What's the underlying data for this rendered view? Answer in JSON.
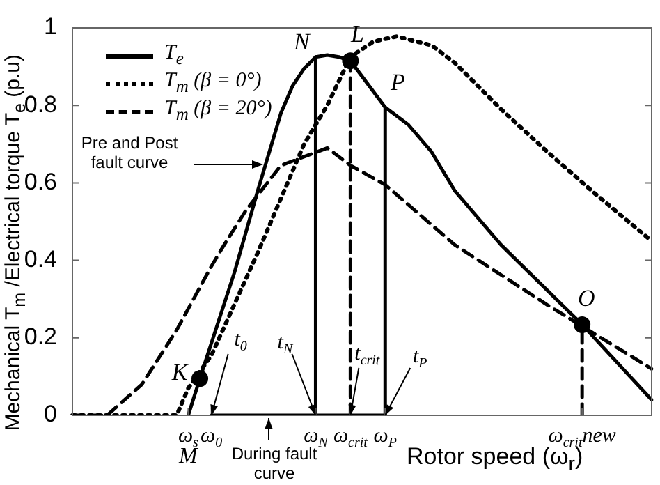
{
  "chart_data": {
    "type": "line",
    "xlabel": "Rotor speed (ω$_{r}$)",
    "ylabel": "Mechanical T$_{m}$ /Electrical torque T$_{e}$ (p.u)",
    "categories": [
      null,
      null,
      null,
      null,
      null,
      null,
      null,
      null,
      null,
      null,
      "ω$_{s}$",
      null,
      "ω$_{0}$",
      null,
      null,
      null,
      null,
      null,
      null,
      null,
      null,
      "ω$_{N}$",
      null,
      null,
      "ω$_{crit}$",
      null,
      null,
      "ω$_{P}$",
      null,
      null,
      null,
      null,
      null,
      null,
      null,
      null,
      null,
      null,
      null,
      null,
      null,
      null,
      null,
      null,
      "ω$_{crit}$new",
      null,
      null,
      null,
      null,
      null,
      null
    ],
    "ylim": [
      0,
      1
    ],
    "yticks": [
      0,
      0.2,
      0.4,
      0.6,
      0.8,
      1
    ],
    "legend": "top left",
    "series": [
      {
        "name": "T$_{e}$",
        "color": "#000000",
        "line_style": "solid",
        "marker": "none",
        "values": [
          null,
          null,
          null,
          null,
          null,
          null,
          null,
          null,
          null,
          null,
          0,
          0.095,
          null,
          null,
          0.37,
          null,
          0.58,
          null,
          0.78,
          0.85,
          0.895,
          0.925,
          0.93,
          0.925,
          0.915,
          null,
          null,
          0.795,
          null,
          0.75,
          null,
          0.68,
          null,
          0.58,
          null,
          null,
          null,
          0.44,
          null,
          null,
          null,
          null,
          null,
          null,
          0.234,
          null,
          null,
          null,
          null,
          null,
          0.04
        ]
      },
      {
        "name": "T$_{m}$ (β = 0°)",
        "color": "#000000",
        "line_style": "dotted",
        "marker": "none",
        "values": [
          0,
          null,
          null,
          null,
          null,
          null,
          null,
          null,
          null,
          0,
          0.07,
          null,
          0.155,
          null,
          null,
          null,
          0.42,
          null,
          null,
          null,
          0.7,
          null,
          0.8,
          null,
          0.925,
          null,
          0.965,
          null,
          0.978,
          null,
          null,
          0.955,
          null,
          0.91,
          null,
          null,
          null,
          0.79,
          null,
          null,
          null,
          0.68,
          null,
          null,
          null,
          0.575,
          null,
          null,
          null,
          null,
          0.45
        ]
      },
      {
        "name": "T$_{m}$ (β = 20°)",
        "color": "#000000",
        "line_style": "dashed",
        "marker": "none",
        "values": [
          0,
          null,
          null,
          0,
          null,
          null,
          0.08,
          null,
          null,
          0.22,
          null,
          null,
          0.385,
          0.435,
          null,
          0.53,
          null,
          null,
          0.645,
          null,
          null,
          null,
          0.69,
          null,
          0.645,
          null,
          null,
          0.595,
          null,
          null,
          null,
          null,
          null,
          0.44,
          null,
          null,
          null,
          null,
          null,
          null,
          null,
          0.285,
          null,
          null,
          0.23,
          null,
          null,
          null,
          null,
          null,
          0.12
        ]
      },
      {
        "color": "#000000",
        "line_style": "solid",
        "marker": "none",
        "x": [
          "ω$_{0}$",
          "ω$_{P}$"
        ],
        "values": [
          0,
          0
        ]
      },
      {
        "color": "#000000",
        "line_style": "solid",
        "marker": "none",
        "x": [
          "ω$_{N}$",
          "ω$_{N}$"
        ],
        "values": [
          0,
          0.925
        ]
      },
      {
        "color": "#000000",
        "line_style": "solid",
        "marker": "none",
        "x": [
          "ω$_{P}$",
          "ω$_{P}$"
        ],
        "values": [
          0,
          0.795
        ]
      },
      {
        "color": "#000000",
        "line_style": "dashed",
        "marker": "none",
        "x": [
          "ω$_{crit}$",
          "ω$_{crit}$"
        ],
        "values": [
          0,
          0.915
        ]
      },
      {
        "color": "#000000",
        "line_style": "dashed",
        "marker": "none",
        "x": [
          "ω$_{crit}$new",
          "ω$_{crit}$new"
        ],
        "values": [
          0,
          0.234
        ]
      },
      {
        "type": "scatter",
        "color": "#000000",
        "marker": "circle",
        "values": [
          null,
          null,
          null,
          null,
          null,
          null,
          null,
          null,
          null,
          null,
          null,
          0.095,
          null,
          null,
          null,
          null,
          null,
          null,
          null,
          null,
          null,
          null,
          null,
          null,
          0.915,
          null,
          null,
          null,
          null,
          null,
          null,
          null,
          null,
          null,
          null,
          null,
          null,
          null,
          null,
          null,
          null,
          null,
          null,
          null,
          0.234,
          null,
          null,
          null,
          null,
          null,
          null
        ]
      }
    ],
    "annotations": [
      "K",
      {
        "text": "N",
        "x": "ω$_{N}$",
        "y": 0.925
      },
      {
        "text": "L",
        "x": "ω$_{crit}$",
        "y": 0.915
      },
      {
        "text": "P",
        "x": "ω$_{P}$",
        "y": 0.795
      },
      {
        "text": "O",
        "x": "ω$_{crit}$new",
        "y": 0.234
      },
      {
        "text": "M",
        "x": "ω$_{s}$",
        "y": 0
      },
      {
        "text": "t$_{0}$",
        "x": "ω$_{0}$",
        "y": 0
      },
      {
        "text": "t$_{N}$",
        "x": "ω$_{N}$",
        "y": 0
      },
      {
        "text": "t$_{crit}$",
        "x": "ω$_{crit}$",
        "y": 0
      },
      {
        "text": "t$_{P}$",
        "x": "ω$_{P}$",
        "y": 0
      },
      "Pre and Post fault curve",
      "During fault curve"
    ]
  }
}
